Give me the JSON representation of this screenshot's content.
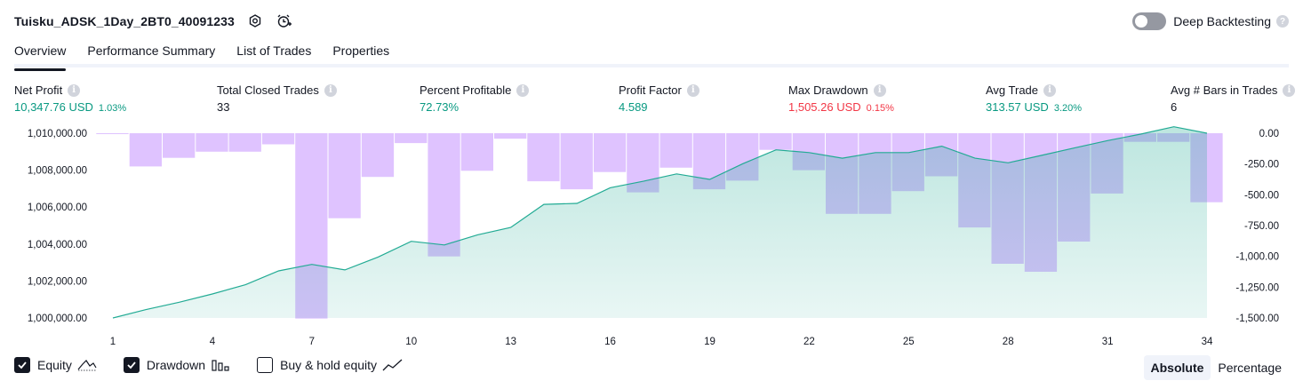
{
  "header": {
    "title": "Tuisku_ADSK_1Day_2BT0_40091233",
    "deep_backtesting_label": "Deep Backtesting"
  },
  "tabs": [
    "Overview",
    "Performance Summary",
    "List of Trades",
    "Properties"
  ],
  "metrics": {
    "net_profit": {
      "label": "Net Profit",
      "value": "10,347.76 USD",
      "sub": "1.03%"
    },
    "total_closed_trades": {
      "label": "Total Closed Trades",
      "value": "33"
    },
    "percent_profitable": {
      "label": "Percent Profitable",
      "value": "72.73%"
    },
    "profit_factor": {
      "label": "Profit Factor",
      "value": "4.589"
    },
    "max_drawdown": {
      "label": "Max Drawdown",
      "value": "1,505.26 USD",
      "sub": "0.15%"
    },
    "avg_trade": {
      "label": "Avg Trade",
      "value": "313.57 USD",
      "sub": "3.20%"
    },
    "avg_bars": {
      "label": "Avg # Bars in Trades",
      "value": "6"
    }
  },
  "legend": {
    "equity": "Equity",
    "drawdown": "Drawdown",
    "buy_hold": "Buy & hold equity"
  },
  "mode": {
    "absolute": "Absolute",
    "percentage": "Percentage"
  },
  "colors": {
    "equity_line": "#22ab94",
    "drawdown_bar": "#d9b8ff",
    "positive": "#089981",
    "negative": "#f23645"
  },
  "chart_data": {
    "type": "line",
    "x_ticks": [
      "1",
      "4",
      "7",
      "10",
      "13",
      "16",
      "19",
      "22",
      "25",
      "28",
      "31",
      "34"
    ],
    "left_axis": {
      "ticks": [
        "1,000,000.00",
        "1,002,000.00",
        "1,004,000.00",
        "1,006,000.00",
        "1,008,000.00",
        "1,010,000.00"
      ],
      "ylim": [
        1000000,
        1010000
      ]
    },
    "right_axis": {
      "ticks": [
        "0.00",
        "-250.00",
        "-500.00",
        "-750.00",
        "-1,000.00",
        "-1,250.00",
        "-1,500.00"
      ],
      "ylim": [
        -1500,
        0
      ]
    },
    "series": [
      {
        "name": "Equity",
        "axis": "left",
        "x": [
          1,
          2,
          3,
          4,
          5,
          6,
          7,
          8,
          9,
          10,
          11,
          12,
          13,
          14,
          15,
          16,
          17,
          18,
          19,
          20,
          21,
          22,
          23,
          24,
          25,
          26,
          27,
          28,
          29,
          30,
          31,
          32,
          33,
          34
        ],
        "values": [
          1000000,
          1000450,
          1000850,
          1001300,
          1001800,
          1002550,
          1002900,
          1002600,
          1003300,
          1004150,
          1003950,
          1004500,
          1004900,
          1006150,
          1006200,
          1007050,
          1007400,
          1007800,
          1007500,
          1008350,
          1009100,
          1008950,
          1008650,
          1008950,
          1008950,
          1009300,
          1008650,
          1008400,
          1008800,
          1009200,
          1009600,
          1009950,
          1010350,
          1010000
        ]
      },
      {
        "name": "Drawdown",
        "axis": "right",
        "x": [
          1,
          2,
          3,
          4,
          5,
          6,
          7,
          8,
          9,
          10,
          11,
          12,
          13,
          14,
          15,
          16,
          17,
          18,
          19,
          20,
          21,
          22,
          23,
          24,
          25,
          26,
          27,
          28,
          29,
          30,
          31,
          32,
          33,
          34
        ],
        "values": [
          -5,
          -270,
          -200,
          -150,
          -150,
          -90,
          -1505,
          -690,
          -355,
          -80,
          -1000,
          -305,
          -45,
          -390,
          -455,
          -315,
          -480,
          -280,
          -455,
          -385,
          -135,
          -300,
          -655,
          -655,
          -470,
          -350,
          -765,
          -1060,
          -1125,
          -880,
          -490,
          -70,
          -70,
          -560
        ]
      }
    ]
  }
}
